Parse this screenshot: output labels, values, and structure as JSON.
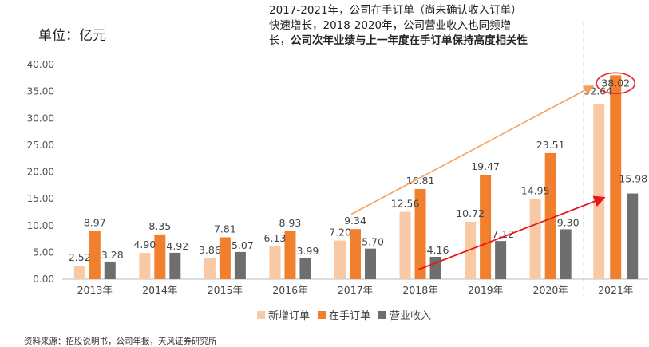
{
  "unit_label": "单位：亿元",
  "annotation": {
    "normal": "2017-2021年，公司在手订单（尚未确认收入订单）快速增长，2018-2020年，公司营业收入也同频增长，",
    "bold": "公司次年业绩与上一年度在手订单保持高度相关性"
  },
  "source": "资料来源：招股说明书，公司年报，天风证券研究所",
  "colors": {
    "new_orders": "#f8c9a4",
    "backlog": "#f07f2e",
    "revenue": "#6e6e6e",
    "trend_orange": "#f5a05a",
    "trend_red": "#e8151b",
    "circle": "#e03030"
  },
  "chart_data": {
    "type": "bar",
    "categories": [
      "2013年",
      "2014年",
      "2015年",
      "2016年",
      "2017年",
      "2018年",
      "2019年",
      "2020年",
      "2021年"
    ],
    "series": [
      {
        "name": "新增订单",
        "values": [
          2.52,
          4.9,
          3.86,
          6.13,
          7.2,
          12.56,
          10.72,
          14.95,
          32.64
        ]
      },
      {
        "name": "在手订单",
        "values": [
          8.97,
          8.35,
          7.81,
          8.93,
          9.34,
          16.81,
          19.47,
          23.51,
          38.02
        ]
      },
      {
        "name": "营业收入",
        "values": [
          3.28,
          4.92,
          5.07,
          3.99,
          5.7,
          4.16,
          7.12,
          9.3,
          15.98
        ]
      }
    ],
    "value_labels": [
      [
        "2.52",
        "4.90",
        "3.86",
        "6.13",
        "7.20",
        "12.56",
        "10.72",
        "14.95",
        "32.64"
      ],
      [
        "8.97",
        "8.35",
        "7.81",
        "8.93",
        "9.34",
        "16.81",
        "19.47",
        "23.51",
        "38.02"
      ],
      [
        "3.28",
        "4.92",
        "5.07",
        "3.99",
        "5.70",
        "4.16",
        "7.12",
        "9.30",
        "15.98"
      ]
    ],
    "yticks": [
      "0.00",
      "5.00",
      "10.00",
      "15.00",
      "20.00",
      "25.00",
      "30.00",
      "35.00",
      "40.00"
    ],
    "ylim": [
      0,
      40
    ],
    "grid": false,
    "legend": "bottom-center",
    "highlight": {
      "category": "2021年",
      "series": "在手订单",
      "value": 38.02
    }
  }
}
